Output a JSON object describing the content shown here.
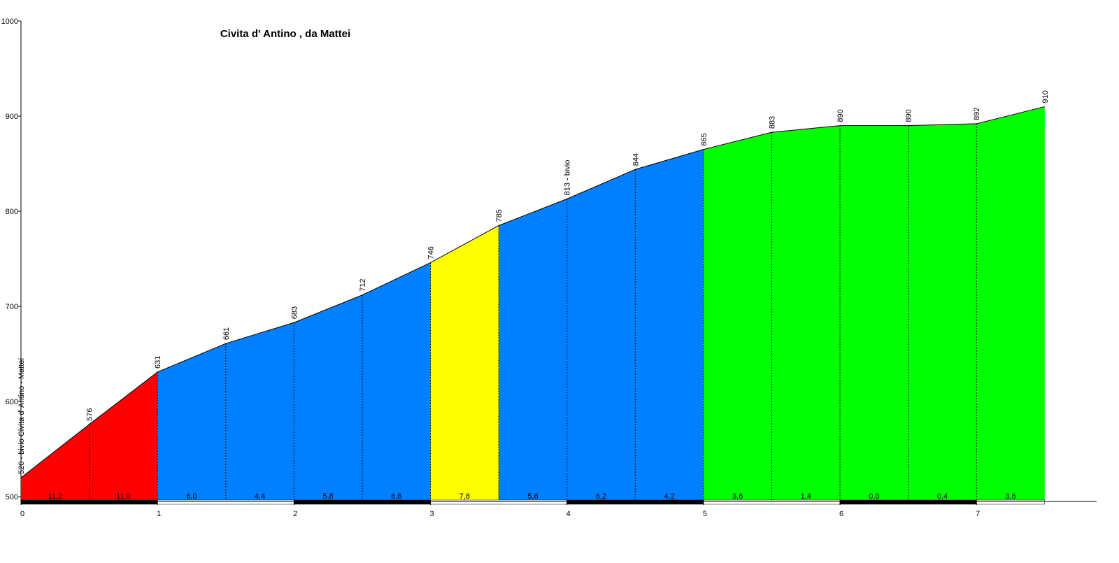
{
  "chart_data": {
    "type": "elevation-profile",
    "title": "Civita d' Antino , da Mattei",
    "x": [
      0,
      0.5,
      1,
      1.5,
      2,
      2.5,
      3,
      3.5,
      4,
      4.5,
      5,
      5.5,
      6,
      6.5,
      7,
      7.5
    ],
    "values": [
      520,
      576,
      631,
      661,
      683,
      712,
      746,
      785,
      813,
      844,
      865,
      883,
      890,
      890,
      892,
      910
    ],
    "value_labels": [
      "520 - bivio Civita d' Antino - Mattei",
      "576",
      "631",
      "661",
      "683",
      "712",
      "746",
      "785",
      "813 - bivio",
      "844",
      "865",
      "883",
      "890",
      "890",
      "892",
      "910"
    ],
    "segments": {
      "values": [
        11.2,
        11.0,
        6.0,
        4.4,
        5.8,
        6.8,
        7.8,
        5.6,
        6.2,
        4.2,
        3.6,
        1.4,
        0.0,
        0.4,
        3.6
      ],
      "value_labels": [
        "11,2",
        "11,0",
        "6,0",
        "4,4",
        "5,8",
        "6,8",
        "7,8",
        "5,6",
        "6,2",
        "4,2",
        "3,6",
        "1,4",
        "0,0",
        "0,4",
        "3,6"
      ],
      "colors": [
        "#ff0000",
        "#ff0000",
        "#0080ff",
        "#0080ff",
        "#0080ff",
        "#0080ff",
        "#ffff00",
        "#0080ff",
        "#0080ff",
        "#0080ff",
        "#00ff00",
        "#00ff00",
        "#00ff00",
        "#00ff00",
        "#00ff00"
      ]
    },
    "xlim": [
      0,
      7.88
    ],
    "xticks": [
      0,
      1,
      2,
      3,
      4,
      5,
      6,
      7
    ],
    "ylim": [
      495,
      1000
    ],
    "yticks": [
      500,
      600,
      700,
      800,
      900,
      1000
    ]
  }
}
